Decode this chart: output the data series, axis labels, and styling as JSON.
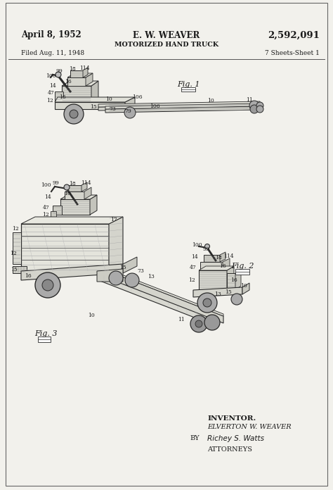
{
  "page_color": "#f2f1ec",
  "text_color": "#1a1a1a",
  "header": {
    "date": "April 8, 1952",
    "inventor_name": "E. W. WEAVER",
    "patent_number": "2,592,091",
    "title": "MOTORIZED HAND TRUCK",
    "filed": "Filed Aug. 11, 1948",
    "sheets": "7 Sheets-Sheet 1"
  },
  "inventor_block": {
    "label": "INVENTOR.",
    "name": "ELVERTON W. WEAVER",
    "by": "BY",
    "attorney_label": "ATTORNEYS"
  }
}
